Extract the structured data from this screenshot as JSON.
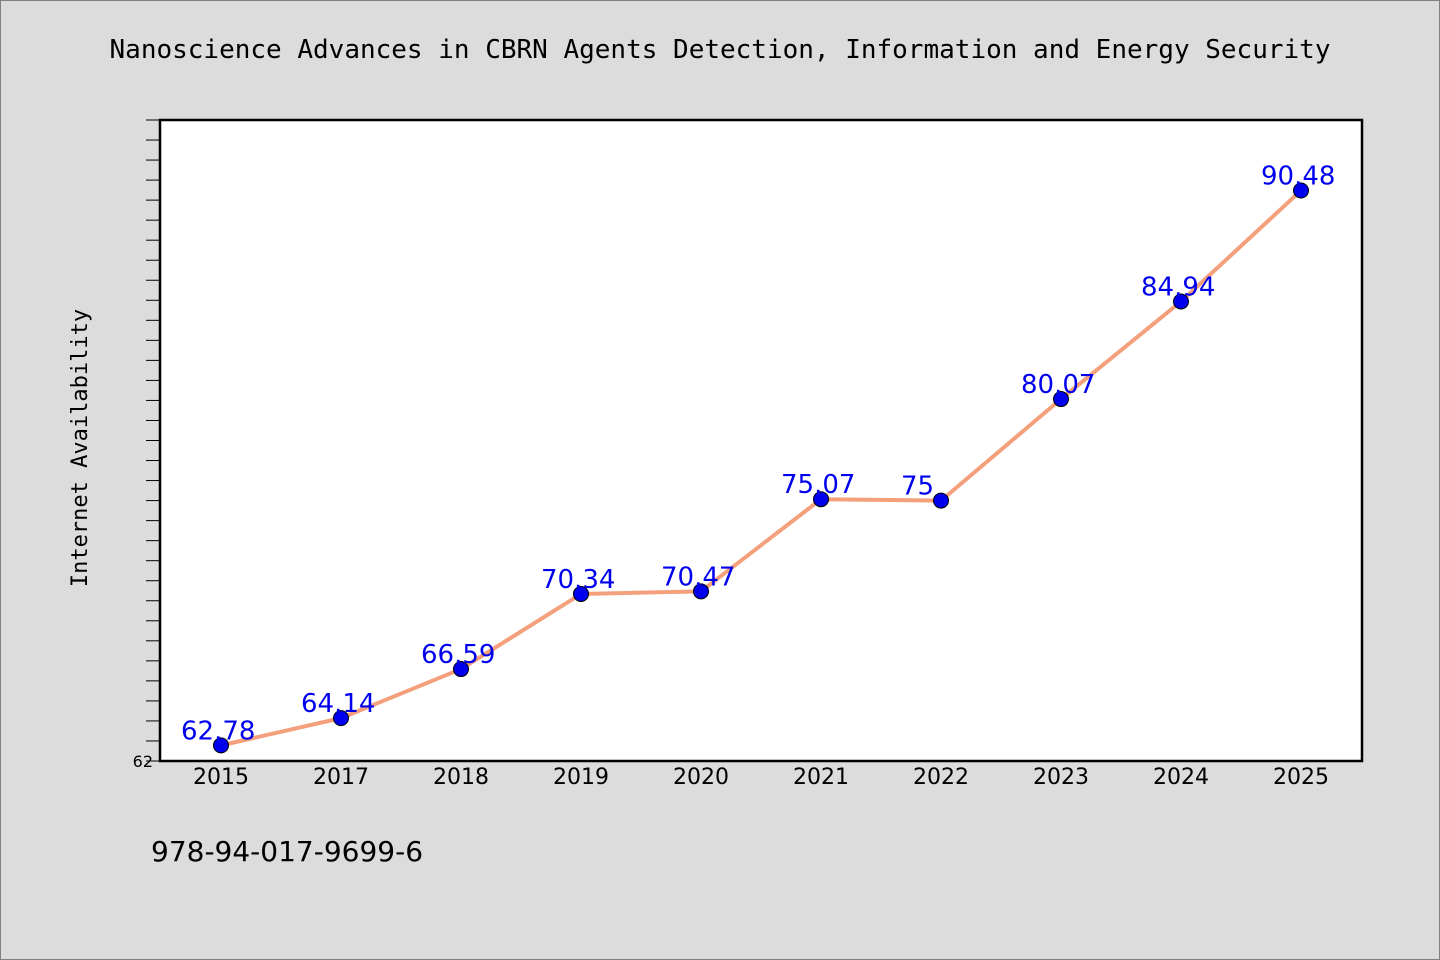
{
  "chart_data": {
    "type": "line",
    "title": "Nanoscience Advances in CBRN Agents Detection, Information and Energy Security",
    "xlabel": "",
    "ylabel": "Internet Availability",
    "categories": [
      "2015",
      "2017",
      "2018",
      "2019",
      "2020",
      "2021",
      "2022",
      "2023",
      "2024",
      "2025"
    ],
    "series": [
      {
        "values": [
          62.78,
          64.14,
          66.59,
          70.34,
          70.47,
          75.07,
          75,
          80.07,
          84.94,
          90.48
        ],
        "data_labels": [
          "62.78",
          "64.14",
          "66.59",
          "70.34",
          "70.47",
          "75.07",
          "75",
          "80.07",
          "84.94",
          "90.48"
        ]
      }
    ],
    "ylim": [
      62,
      94
    ],
    "y_tick_labels": [
      "62"
    ],
    "grid": false,
    "legend": "none",
    "colors": {
      "line": "#f4a07c",
      "marker": "#0000ee",
      "data_label": "#0000ee",
      "plot_background": "#ffffff",
      "figure_background": "#dcdcdc"
    }
  },
  "footer": {
    "isbn": "978-94-017-9699-6"
  }
}
